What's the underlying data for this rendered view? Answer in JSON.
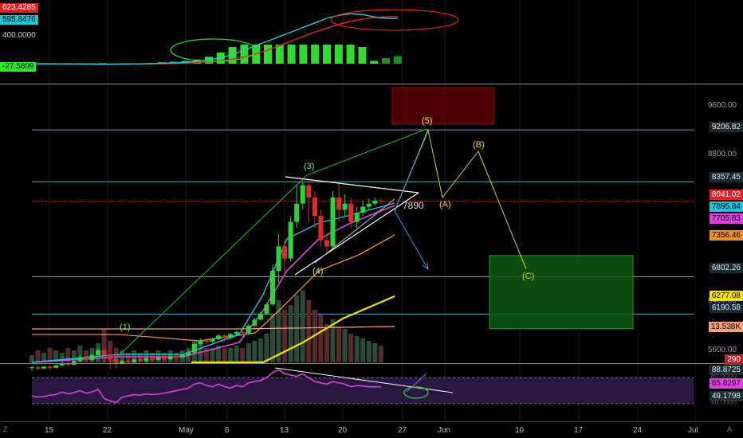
{
  "top_left_tags": [
    {
      "text": "623.4285",
      "bg": "#e02020",
      "fg": "#ffffff"
    },
    {
      "text": "595.8476",
      "bg": "#19c5d6",
      "fg": "#000000"
    },
    {
      "text": "400.0000",
      "bg": "#000000",
      "fg": "#cfcfcf"
    },
    {
      "text": "-27.5809",
      "bg": "#2ee82e",
      "fg": "#000000"
    }
  ],
  "price_axis": {
    "ticks": [
      "9600.00",
      "8800.00",
      "6400.00",
      "5600.00"
    ],
    "tags": [
      {
        "text": "9206.82",
        "bg": "#1a2a33",
        "fg": "#dfe7ee"
      },
      {
        "text": "8357.45",
        "bg": "#1a2a33",
        "fg": "#dfe7ee"
      },
      {
        "text": "8041.02",
        "bg": "#e4202a",
        "fg": "#ffffff"
      },
      {
        "text": "7895.84",
        "bg": "#19c5e0",
        "fg": "#000000"
      },
      {
        "text": "7705.83",
        "bg": "#e042e0",
        "fg": "#000000"
      },
      {
        "text": "7356.46",
        "bg": "#f0902a",
        "fg": "#000000"
      },
      {
        "text": "6802.26",
        "bg": "#1a2a33",
        "fg": "#dfe7ee"
      },
      {
        "text": "6277.08",
        "bg": "#f2e400",
        "fg": "#000000"
      },
      {
        "text": "6190.58",
        "bg": "#1a2a33",
        "fg": "#dfe7ee"
      },
      {
        "text": "13.538K",
        "bg": "#f6a07a",
        "fg": "#000000"
      },
      {
        "text": "290",
        "bg": "#b02828",
        "fg": "#ffffff"
      }
    ]
  },
  "rsi_axis": {
    "tags": [
      {
        "text": "88.8725",
        "bg": "#1a2a33",
        "fg": "#dfe7ee"
      },
      {
        "text": "65.8297",
        "bg": "#e042e0",
        "fg": "#000000"
      },
      {
        "text": "49.1798",
        "bg": "#1a2a33",
        "fg": "#dfe7ee"
      }
    ],
    "faint": [
      "80.0000",
      "40.0000"
    ]
  },
  "time_axis": [
    "15",
    "22",
    "May",
    "6",
    "13",
    "20",
    "27",
    "Jun",
    "10",
    "17",
    "24",
    "Jul"
  ],
  "corner_left": "Z",
  "corner_right": "A",
  "annotations": {
    "wave1": "(1)",
    "wave3": "(3)",
    "wave4": "(4)",
    "wave5": "(5)",
    "waveA": "(A)",
    "waveB": "(B)",
    "waveC": "(C)",
    "price_note": "7890"
  },
  "chart_data": {
    "type": "candlestick",
    "y_axis_range": [
      5400,
      9900
    ],
    "horizontal_levels": [
      9206.82,
      8357.45,
      8041.02,
      6802.26,
      6190.58
    ],
    "candles": [
      [
        5310,
        5320,
        5260,
        5340
      ],
      [
        5320,
        5300,
        5280,
        5340
      ],
      [
        5300,
        5330,
        5290,
        5350
      ],
      [
        5330,
        5310,
        5290,
        5340
      ],
      [
        5310,
        5350,
        5300,
        5370
      ],
      [
        5350,
        5380,
        5340,
        5400
      ],
      [
        5380,
        5360,
        5340,
        5400
      ],
      [
        5360,
        5420,
        5350,
        5440
      ],
      [
        5420,
        5480,
        5410,
        5510
      ],
      [
        5480,
        5440,
        5420,
        5500
      ],
      [
        5440,
        5520,
        5430,
        5540
      ],
      [
        5520,
        5600,
        5500,
        5640
      ],
      [
        5600,
        5520,
        5380,
        5620
      ],
      [
        5520,
        5450,
        5300,
        5540
      ],
      [
        5450,
        5380,
        5300,
        5470
      ],
      [
        5380,
        5420,
        5360,
        5440
      ],
      [
        5420,
        5400,
        5380,
        5440
      ],
      [
        5400,
        5450,
        5390,
        5470
      ],
      [
        5450,
        5420,
        5400,
        5470
      ],
      [
        5420,
        5470,
        5400,
        5490
      ],
      [
        5470,
        5440,
        5420,
        5490
      ],
      [
        5440,
        5480,
        5430,
        5500
      ],
      [
        5480,
        5450,
        5430,
        5500
      ],
      [
        5450,
        5500,
        5440,
        5520
      ],
      [
        5500,
        5480,
        5460,
        5520
      ],
      [
        5480,
        5520,
        5460,
        5540
      ],
      [
        5520,
        5560,
        5500,
        5590
      ],
      [
        5560,
        5700,
        5540,
        5720
      ],
      [
        5700,
        5760,
        5680,
        5790
      ],
      [
        5760,
        5740,
        5700,
        5800
      ],
      [
        5740,
        5780,
        5720,
        5800
      ],
      [
        5780,
        5840,
        5760,
        5860
      ],
      [
        5840,
        5800,
        5780,
        5860
      ],
      [
        5800,
        5860,
        5780,
        5880
      ],
      [
        5860,
        5900,
        5840,
        5920
      ],
      [
        5900,
        5880,
        5850,
        5920
      ],
      [
        5880,
        6000,
        5860,
        6030
      ],
      [
        6000,
        6100,
        5980,
        6130
      ],
      [
        6100,
        6200,
        6080,
        6230
      ],
      [
        6200,
        6350,
        6180,
        6380
      ],
      [
        6350,
        6900,
        6330,
        7000
      ],
      [
        6900,
        7300,
        6700,
        7500
      ],
      [
        7300,
        7100,
        6800,
        7400
      ],
      [
        7100,
        7700,
        7050,
        7800
      ],
      [
        7700,
        8000,
        7600,
        8300
      ],
      [
        8000,
        8300,
        7900,
        8350
      ],
      [
        8300,
        8100,
        7700,
        8400
      ],
      [
        8100,
        7800,
        7600,
        8200
      ],
      [
        7800,
        7400,
        7300,
        7900
      ],
      [
        7400,
        7300,
        7200,
        7500
      ],
      [
        7300,
        8100,
        7250,
        8200
      ],
      [
        8100,
        7900,
        7700,
        8350
      ],
      [
        7900,
        8000,
        7800,
        8150
      ],
      [
        8000,
        7700,
        7600,
        8100
      ],
      [
        7700,
        7850,
        7600,
        7950
      ],
      [
        7850,
        7950,
        7800,
        8050
      ],
      [
        7950,
        8000,
        7900,
        8080
      ],
      [
        8000,
        8050,
        7960,
        8100
      ],
      [
        8050,
        8041,
        8000,
        8090
      ]
    ],
    "volume": [
      3,
      5,
      4,
      6,
      5,
      4,
      6,
      5,
      7,
      5,
      6,
      8,
      14,
      9,
      6,
      5,
      4,
      5,
      4,
      5,
      4,
      5,
      4,
      5,
      4,
      5,
      6,
      9,
      8,
      6,
      6,
      7,
      6,
      6,
      7,
      6,
      8,
      9,
      10,
      12,
      20,
      26,
      22,
      24,
      28,
      30,
      26,
      22,
      20,
      16,
      18,
      15,
      14,
      12,
      11,
      10,
      9,
      8,
      7
    ],
    "rsi": [
      52,
      50,
      51,
      53,
      54,
      58,
      55,
      57,
      60,
      56,
      58,
      62,
      48,
      44,
      42,
      50,
      52,
      54,
      53,
      55,
      54,
      55,
      56,
      58,
      60,
      62,
      64,
      70,
      72,
      68,
      66,
      70,
      66,
      64,
      68,
      66,
      72,
      74,
      76,
      80,
      88,
      92,
      86,
      84,
      82,
      86,
      80,
      74,
      72,
      70,
      74,
      72,
      70,
      66,
      68,
      67,
      66,
      66,
      65.83
    ],
    "macd_line": [
      -2,
      -3,
      -2,
      -4,
      -5,
      -6,
      -8,
      -6,
      -4,
      -2,
      0,
      5,
      10,
      18,
      30,
      50,
      80,
      120,
      180,
      240,
      300,
      360,
      420,
      480,
      540,
      600,
      640,
      660,
      650,
      620,
      600,
      595.85
    ],
    "signal_line": [
      0,
      -1,
      -1,
      -2,
      -3,
      -4,
      -5,
      -5,
      -4,
      -3,
      -2,
      0,
      3,
      8,
      15,
      25,
      40,
      60,
      90,
      130,
      180,
      240,
      300,
      360,
      420,
      470,
      520,
      560,
      590,
      610,
      620,
      623.43
    ]
  }
}
